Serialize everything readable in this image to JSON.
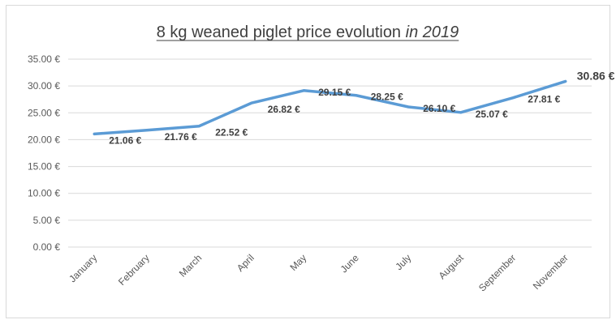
{
  "chart_data": {
    "type": "line",
    "title": "8 kg weaned piglet price evolution",
    "title_emphasis": "in 2019",
    "categories": [
      "January",
      "February",
      "March",
      "April",
      "May",
      "June",
      "July",
      "August",
      "September",
      "November"
    ],
    "series": [
      {
        "values": [
          21.06,
          21.76,
          22.52,
          26.82,
          29.15,
          28.25,
          26.1,
          25.07,
          27.81,
          30.86
        ],
        "data_labels": [
          "21.06 €",
          "21.76 €",
          "22.52 €",
          "26.82 €",
          "29.15 €",
          "28.25 €",
          "26.10 €",
          "25.07 €",
          "27.81 €",
          "30.86 €"
        ],
        "color": "#5b9bd5"
      }
    ],
    "y_ticks": [
      0,
      5,
      10,
      15,
      20,
      25,
      30,
      35
    ],
    "y_tick_labels": [
      "0.00 €",
      "5.00 €",
      "10.00 €",
      "15.00 €",
      "20.00 €",
      "25.00 €",
      "30.00 €",
      "35.00 €"
    ],
    "ylim": [
      0,
      35
    ],
    "grid": true,
    "gridline_color": "#d9d9d9",
    "xlabel": "",
    "ylabel": ""
  }
}
